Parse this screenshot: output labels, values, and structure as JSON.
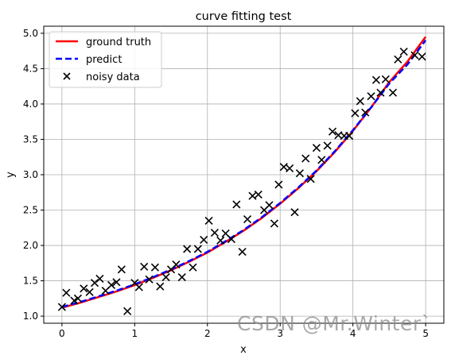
{
  "chart_data": {
    "type": "line",
    "title": "curve fitting test",
    "xlabel": "x",
    "ylabel": "y",
    "xlim": [
      -0.25,
      5.25
    ],
    "ylim": [
      0.9,
      5.1
    ],
    "xticks": [
      0,
      1,
      2,
      3,
      4,
      5
    ],
    "xtick_labels": [
      "0",
      "1",
      "2",
      "3",
      "4",
      "5"
    ],
    "yticks": [
      1.0,
      1.5,
      2.0,
      2.5,
      3.0,
      3.5,
      4.0,
      4.5,
      5.0
    ],
    "ytick_labels": [
      "1.0",
      "1.5",
      "2.0",
      "2.5",
      "3.0",
      "3.5",
      "4.0",
      "4.5",
      "5.0"
    ],
    "grid": true,
    "legend_position": "top-left",
    "colors": {
      "ground_truth": "#ff0000",
      "predict": "#0000ff",
      "noisy": "#000000"
    },
    "series": [
      {
        "name": "ground truth",
        "style": "solid",
        "x": [
          0,
          0.25,
          0.5,
          0.75,
          1.0,
          1.25,
          1.5,
          1.75,
          2.0,
          2.25,
          2.5,
          2.75,
          3.0,
          3.25,
          3.5,
          3.75,
          4.0,
          4.25,
          4.5,
          4.75,
          5.0
        ],
        "y": [
          1.12,
          1.19,
          1.27,
          1.35,
          1.44,
          1.54,
          1.65,
          1.77,
          1.9,
          2.05,
          2.21,
          2.39,
          2.59,
          2.81,
          3.05,
          3.32,
          3.62,
          3.95,
          4.31,
          4.6,
          4.95
        ]
      },
      {
        "name": "predict",
        "style": "dashed",
        "x": [
          0,
          0.25,
          0.5,
          0.75,
          1.0,
          1.25,
          1.5,
          1.75,
          2.0,
          2.25,
          2.5,
          2.75,
          3.0,
          3.25,
          3.5,
          3.75,
          4.0,
          4.25,
          4.5,
          4.75,
          5.0
        ],
        "y": [
          1.13,
          1.2,
          1.28,
          1.36,
          1.45,
          1.55,
          1.66,
          1.78,
          1.91,
          2.06,
          2.22,
          2.4,
          2.6,
          2.82,
          3.06,
          3.33,
          3.63,
          3.95,
          4.29,
          4.56,
          4.9
        ]
      }
    ],
    "scatter": {
      "name": "noisy data",
      "marker": "x",
      "points": [
        [
          0.0,
          1.13
        ],
        [
          0.06,
          1.33
        ],
        [
          0.17,
          1.22
        ],
        [
          0.22,
          1.25
        ],
        [
          0.3,
          1.39
        ],
        [
          0.38,
          1.34
        ],
        [
          0.45,
          1.47
        ],
        [
          0.52,
          1.53
        ],
        [
          0.6,
          1.36
        ],
        [
          0.68,
          1.44
        ],
        [
          0.75,
          1.48
        ],
        [
          0.82,
          1.66
        ],
        [
          0.9,
          1.07
        ],
        [
          1.0,
          1.47
        ],
        [
          1.06,
          1.41
        ],
        [
          1.13,
          1.7
        ],
        [
          1.2,
          1.52
        ],
        [
          1.28,
          1.69
        ],
        [
          1.35,
          1.42
        ],
        [
          1.43,
          1.55
        ],
        [
          1.5,
          1.66
        ],
        [
          1.57,
          1.73
        ],
        [
          1.65,
          1.55
        ],
        [
          1.72,
          1.95
        ],
        [
          1.8,
          1.69
        ],
        [
          1.87,
          1.95
        ],
        [
          1.95,
          2.08
        ],
        [
          2.02,
          2.35
        ],
        [
          2.1,
          2.18
        ],
        [
          2.18,
          2.07
        ],
        [
          2.25,
          2.17
        ],
        [
          2.33,
          2.09
        ],
        [
          2.4,
          2.58
        ],
        [
          2.48,
          1.91
        ],
        [
          2.55,
          2.37
        ],
        [
          2.62,
          2.7
        ],
        [
          2.7,
          2.72
        ],
        [
          2.78,
          2.5
        ],
        [
          2.85,
          2.57
        ],
        [
          2.92,
          2.31
        ],
        [
          2.98,
          2.86
        ],
        [
          3.05,
          3.11
        ],
        [
          3.13,
          3.09
        ],
        [
          3.2,
          2.47
        ],
        [
          3.27,
          3.02
        ],
        [
          3.35,
          3.23
        ],
        [
          3.42,
          2.94
        ],
        [
          3.5,
          3.38
        ],
        [
          3.57,
          3.21
        ],
        [
          3.65,
          3.41
        ],
        [
          3.72,
          3.61
        ],
        [
          3.8,
          3.56
        ],
        [
          3.88,
          3.55
        ],
        [
          3.95,
          3.55
        ],
        [
          4.03,
          3.87
        ],
        [
          4.1,
          4.04
        ],
        [
          4.17,
          3.88
        ],
        [
          4.25,
          4.11
        ],
        [
          4.32,
          4.34
        ],
        [
          4.38,
          4.16
        ],
        [
          4.45,
          4.35
        ],
        [
          4.55,
          4.16
        ],
        [
          4.62,
          4.63
        ],
        [
          4.7,
          4.74
        ],
        [
          4.85,
          4.69
        ],
        [
          4.95,
          4.67
        ]
      ]
    }
  },
  "watermark": "CSDN @Mr.Winter`"
}
